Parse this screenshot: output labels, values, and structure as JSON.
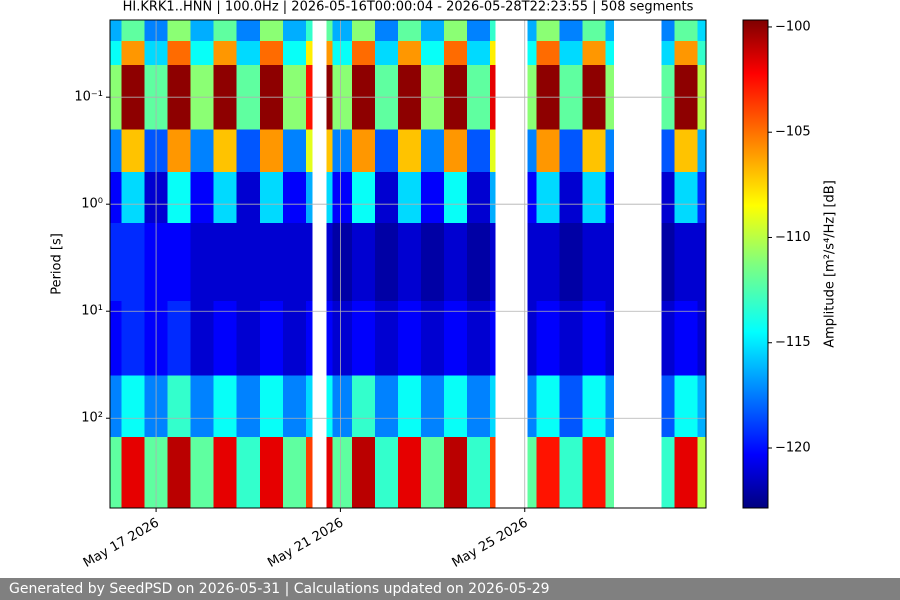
{
  "chart_data": {
    "type": "heatmap",
    "title": "HI.KRK1..HNN | 100.0Hz | 2026-05-16T00:00:04 - 2026-05-28T22:23:55 | 508 segments",
    "y_label": "Period [s]",
    "colorbar_label": "Amplitude [m²/s⁴/Hz] [dB]",
    "colormap": "jet",
    "y_log": true,
    "y_inverted": true,
    "grid": true,
    "xlim": [
      "2026-05-16T00:00:04",
      "2026-05-28T22:23:55"
    ],
    "xticks": [
      {
        "value": "2026-05-17",
        "label": "May 17 2026"
      },
      {
        "value": "2026-05-21",
        "label": "May 21 2026"
      },
      {
        "value": "2026-05-25",
        "label": "May 25 2026"
      }
    ],
    "ylim": [
      0.019,
      690
    ],
    "yticks": [
      {
        "value": 0.1,
        "label": "10⁻¹"
      },
      {
        "value": 1,
        "label": "10⁰"
      },
      {
        "value": 10,
        "label": "10¹"
      },
      {
        "value": 100,
        "label": "10²"
      }
    ],
    "clim": [
      -122.85,
      -99.67
    ],
    "cticks": [
      {
        "value": -100,
        "label": "−100"
      },
      {
        "value": -105,
        "label": "−105"
      },
      {
        "value": -110,
        "label": "−110"
      },
      {
        "value": -115,
        "label": "−115"
      },
      {
        "value": -120,
        "label": "−120"
      }
    ],
    "x_bins": [
      "2026-05-16T00:00",
      "2026-05-16T06:00",
      "2026-05-16T18:00",
      "2026-05-17T06:00",
      "2026-05-17T18:00",
      "2026-05-18T06:00",
      "2026-05-18T18:00",
      "2026-05-19T06:00",
      "2026-05-19T18:00",
      "2026-05-20T06:00",
      "2026-05-20T09:24",
      "2026-05-20T16:42",
      "2026-05-20T20:00",
      "2026-05-21T06:00",
      "2026-05-21T18:00",
      "2026-05-22T06:00",
      "2026-05-22T18:00",
      "2026-05-23T06:00",
      "2026-05-23T18:00",
      "2026-05-24T06:00",
      "2026-05-24T08:52",
      "2026-05-25T01:30",
      "2026-05-25T06:00",
      "2026-05-25T18:00",
      "2026-05-26T06:00",
      "2026-05-26T18:00",
      "2026-05-26T22:26",
      "2026-05-27T23:20",
      "2026-05-28T06:00",
      "2026-05-28T18:00",
      "2026-05-28T22:24"
    ],
    "y_bins": [
      0.019,
      0.03,
      0.05,
      0.2,
      0.5,
      1.5,
      8,
      40,
      150,
      690
    ],
    "values": [
      [
        -116,
        -112,
        -117,
        -111,
        -116,
        -112,
        -117,
        -111,
        -116,
        -113,
        null,
        -112,
        -116,
        -111,
        -117,
        -112,
        -116,
        -111,
        -117,
        -113,
        null,
        -116,
        -111,
        -117,
        -112,
        -116,
        null,
        -117,
        -112,
        -115
      ],
      [
        -114,
        -106,
        -115,
        -105,
        -114,
        -106,
        -115,
        -105,
        -114,
        -108,
        null,
        -106,
        -114,
        -105,
        -115,
        -106,
        -114,
        -105,
        -115,
        -108,
        null,
        -114,
        -105,
        -115,
        -106,
        -114,
        null,
        -115,
        -106,
        -113
      ],
      [
        -111,
        -100,
        -112,
        -100,
        -111,
        -100,
        -112,
        -100,
        -111,
        -103,
        null,
        -100,
        -111,
        -100,
        -112,
        -100,
        -111,
        -100,
        -112,
        -102,
        null,
        -111,
        -100,
        -112,
        -100,
        -111,
        null,
        -112,
        -100,
        -110
      ],
      [
        -117,
        -107,
        -118,
        -106,
        -117,
        -107,
        -118,
        -106,
        -117,
        -109,
        null,
        -107,
        -117,
        -106,
        -118,
        -107,
        -117,
        -106,
        -118,
        -109,
        null,
        -117,
        -106,
        -118,
        -107,
        -117,
        null,
        -118,
        -107,
        -116
      ],
      [
        -120,
        -115,
        -121,
        -114,
        -120,
        -115,
        -121,
        -115,
        -120,
        -116,
        null,
        -115,
        -120,
        -114,
        -121,
        -115,
        -120,
        -114,
        -121,
        -116,
        null,
        -120,
        -115,
        -121,
        -115,
        -120,
        null,
        -121,
        -115,
        -119
      ],
      [
        -119,
        -119,
        -120,
        -120,
        -121,
        -121,
        -121,
        -121,
        -121,
        -121,
        null,
        -121,
        -122,
        -121,
        -122,
        -121,
        -122,
        -121,
        -122,
        -121,
        null,
        -121,
        -121,
        -122,
        -121,
        -121,
        null,
        -122,
        -121,
        -121
      ],
      [
        -120,
        -119,
        -120,
        -119,
        -121,
        -120,
        -121,
        -120,
        -121,
        -120,
        null,
        -120,
        -121,
        -120,
        -121,
        -120,
        -121,
        -120,
        -121,
        -120,
        null,
        -121,
        -120,
        -121,
        -120,
        -121,
        null,
        -121,
        -120,
        -121
      ],
      [
        -117,
        -114,
        -117,
        -113,
        -117,
        -114,
        -117,
        -114,
        -117,
        -115,
        null,
        -114,
        -117,
        -113,
        -117,
        -114,
        -117,
        -114,
        -117,
        -115,
        null,
        -117,
        -114,
        -118,
        -114,
        -117,
        null,
        -118,
        -114,
        -116
      ],
      [
        -112,
        -102,
        -112,
        -101,
        -112,
        -102,
        -113,
        -102,
        -112,
        -104,
        null,
        -102,
        -112,
        -101,
        -113,
        -102,
        -112,
        -101,
        -113,
        -104,
        null,
        -112,
        -103,
        -113,
        -103,
        -112,
        null,
        -113,
        -102,
        -110
      ]
    ]
  },
  "footer": "Generated by SeedPSD on 2026-05-31 | Calculations updated on 2026-05-29"
}
